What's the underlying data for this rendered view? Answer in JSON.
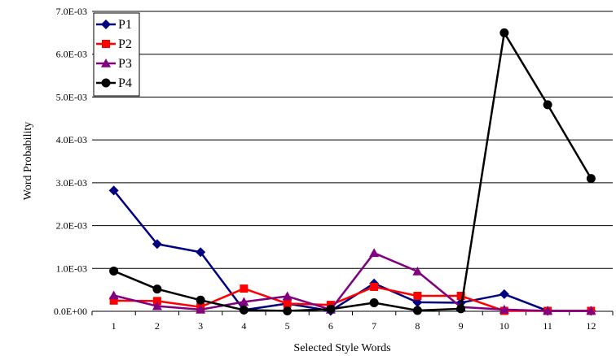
{
  "chart_data": {
    "type": "line",
    "title": "",
    "xlabel": "Selected Style Words",
    "ylabel": "Word Probability",
    "x": [
      1,
      2,
      3,
      4,
      5,
      6,
      7,
      8,
      9,
      10,
      11,
      12
    ],
    "ylim": [
      0,
      0.007
    ],
    "yticks": [
      0,
      0.001,
      0.002,
      0.003,
      0.004,
      0.005,
      0.006,
      0.007
    ],
    "ytick_labels": [
      "0.0E+00",
      "1.0E-03",
      "2.0E-03",
      "3.0E-03",
      "4.0E-03",
      "5.0E-03",
      "6.0E-03",
      "7.0E-03"
    ],
    "grid": "horizontal",
    "legend": "top-left",
    "series": [
      {
        "name": "P1",
        "color": "#000080",
        "marker": "diamond",
        "values": [
          0.00282,
          0.00157,
          0.00138,
          3e-05,
          0.00018,
          1e-05,
          0.00065,
          0.00021,
          0.0002,
          0.0004,
          1e-05,
          1e-05
        ]
      },
      {
        "name": "P2",
        "color": "#ff0000",
        "marker": "square",
        "values": [
          0.00025,
          0.00024,
          0.0001,
          0.00053,
          0.00018,
          0.00015,
          0.00057,
          0.00036,
          0.00036,
          1e-05,
          1e-05,
          1e-05
        ]
      },
      {
        "name": "P3",
        "color": "#800080",
        "marker": "triangle",
        "values": [
          0.00037,
          0.00012,
          4e-05,
          0.00022,
          0.00035,
          4e-05,
          0.00136,
          0.00093,
          0.0001,
          4e-05,
          1e-05,
          1e-05
        ]
      },
      {
        "name": "P4",
        "color": "#000000",
        "marker": "circle",
        "values": [
          0.00094,
          0.00052,
          0.00026,
          3e-05,
          1e-05,
          5e-05,
          0.0002,
          2e-05,
          6e-05,
          0.0065,
          0.00482,
          0.0031
        ]
      }
    ]
  }
}
